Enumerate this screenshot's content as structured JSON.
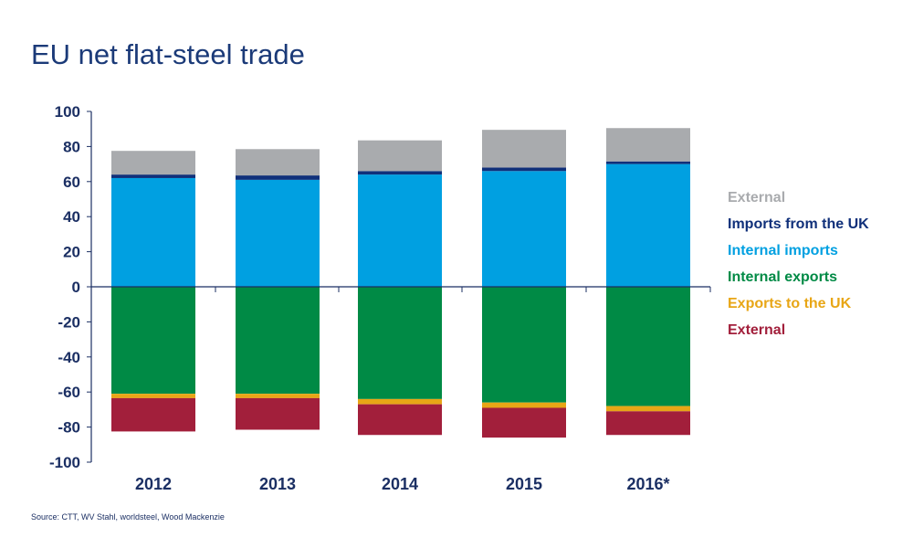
{
  "chart_data": {
    "type": "bar",
    "stacked": true,
    "title": "EU net flat-steel trade",
    "xlabel": "",
    "ylabel": "",
    "ylim": [
      -100,
      100
    ],
    "yticks": [
      100,
      80,
      60,
      40,
      20,
      0,
      -20,
      -40,
      -60,
      -80,
      -100
    ],
    "categories": [
      "2012",
      "2013",
      "2014",
      "2015",
      "2016*"
    ],
    "positive_series": [
      {
        "name": "Internal imports",
        "color": "#00a0e1",
        "values": [
          62,
          61,
          64,
          66,
          70
        ]
      },
      {
        "name": "Imports from the UK",
        "color": "#10307a",
        "values": [
          2,
          2.5,
          2,
          2,
          1.5
        ]
      },
      {
        "name": "External",
        "color": "#a9abae",
        "values": [
          13.5,
          15,
          17.5,
          21.5,
          19
        ]
      }
    ],
    "negative_series": [
      {
        "name": "Internal exports",
        "color": "#008a45",
        "values": [
          -61,
          -61,
          -64,
          -66,
          -68
        ]
      },
      {
        "name": "Exports to the UK",
        "color": "#e8a616",
        "values": [
          -2.5,
          -2.5,
          -3,
          -3,
          -3
        ]
      },
      {
        "name": "External",
        "color": "#a21f3b",
        "values": [
          -19,
          -18,
          -17.5,
          -17,
          -13.5
        ]
      }
    ],
    "legend": [
      {
        "label": "External",
        "color": "#a9abae"
      },
      {
        "label": "Imports from the UK",
        "color": "#10307a"
      },
      {
        "label": "Internal imports",
        "color": "#00a0e1"
      },
      {
        "label": "Internal exports",
        "color": "#008a45"
      },
      {
        "label": "Exports to the UK",
        "color": "#e8a616"
      },
      {
        "label": "External",
        "color": "#a21f3b"
      }
    ],
    "legend_position": "right"
  },
  "source": "Source: CTT, WV Stahl, worldsteel, Wood Mackenzie"
}
